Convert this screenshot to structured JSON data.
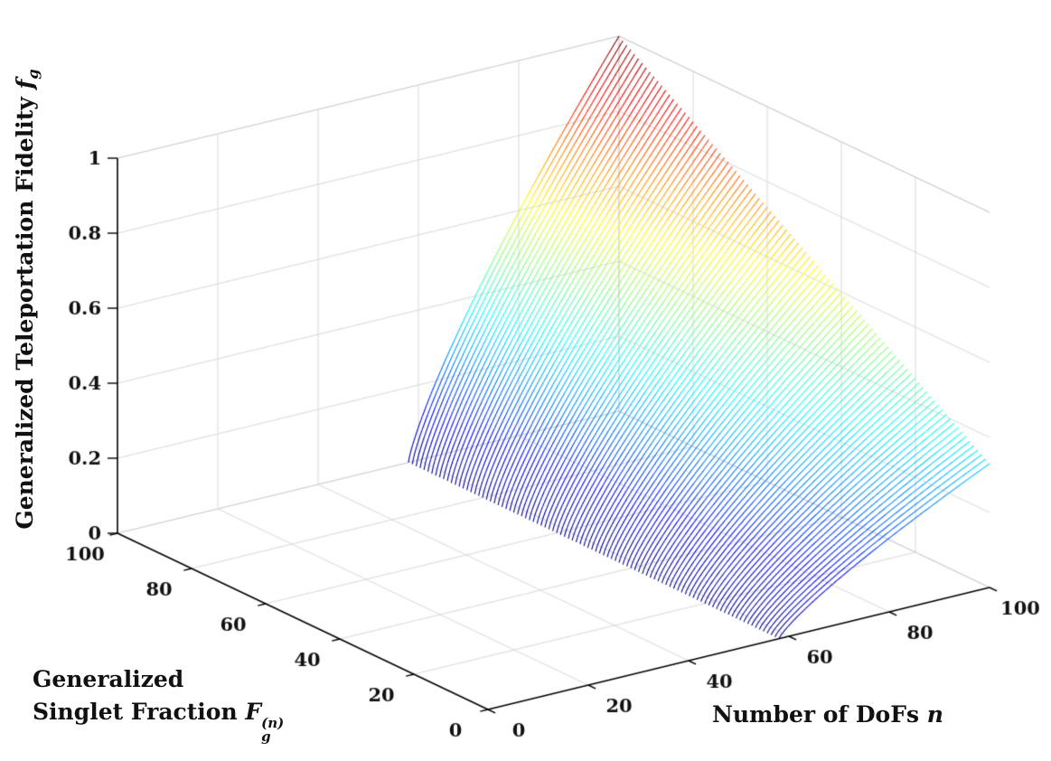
{
  "figure": {
    "background": "#ffffff",
    "grid_color": "#d9d9d9",
    "box_edge_color": "#c9c9c9",
    "axis_color": "#000000",
    "tick_label_color": "#111111"
  },
  "labels": {
    "z_prefix": "Generalized Teleportation Fidelity ",
    "z_math": "f",
    "z_sub": "g",
    "y_line1": "Generalized",
    "y_line2_prefix": "Singlet Fraction ",
    "y_math": "F",
    "y_sub": "g",
    "y_sup": "(n)",
    "x_prefix": "Number of DoFs ",
    "x_math": "n"
  },
  "chart_data": {
    "type": "surface3d",
    "title": "",
    "xlabel": "Number of DoFs n",
    "ylabel": "Generalized Singlet Fraction F_g^(n)",
    "zlabel": "Generalized Teleportation Fidelity f_g",
    "x_axis": {
      "name": "n",
      "range": [
        0,
        100
      ],
      "ticks": [
        "0",
        "20",
        "40",
        "60",
        "80",
        "100"
      ]
    },
    "y_axis": {
      "name": "F_g^(n)",
      "range": [
        0,
        100
      ],
      "ticks": [
        "0",
        "20",
        "40",
        "60",
        "80",
        "100"
      ]
    },
    "z_axis": {
      "name": "f_g",
      "range": [
        0,
        1
      ],
      "ticks": [
        "0",
        "0.2",
        "0.4",
        "0.6",
        "0.8",
        "1"
      ]
    },
    "colormap": "jet",
    "legend": "none",
    "grid": "on",
    "surface": {
      "model": "f_g = ((n/100 - v0)/(1 - v0))^cliff_exp * (base + slope*F/100) for n/100 > v0, else 0; peak f_g = 1 at F = 100, n = 100",
      "v0": 0.58,
      "cliff_exp": 0.8,
      "base": 0.33,
      "slope": 0.67,
      "mesh_lines": 96,
      "samples_per_line": 150
    },
    "sample_grid": {
      "F_percent": [
        0,
        20,
        40,
        60,
        80,
        100
      ],
      "n": [
        0,
        20,
        40,
        60,
        80,
        100
      ],
      "f_values": [
        [
          0,
          0,
          0,
          0.029,
          0.197,
          0.33
        ],
        [
          0,
          0,
          0,
          0.041,
          0.277,
          0.464
        ],
        [
          0,
          0,
          0,
          0.052,
          0.356,
          0.598
        ],
        [
          0,
          0,
          0,
          0.064,
          0.436,
          0.732
        ],
        [
          0,
          0,
          0,
          0.076,
          0.516,
          0.866
        ],
        [
          0,
          0,
          0,
          0.088,
          0.596,
          1.0
        ]
      ]
    }
  }
}
